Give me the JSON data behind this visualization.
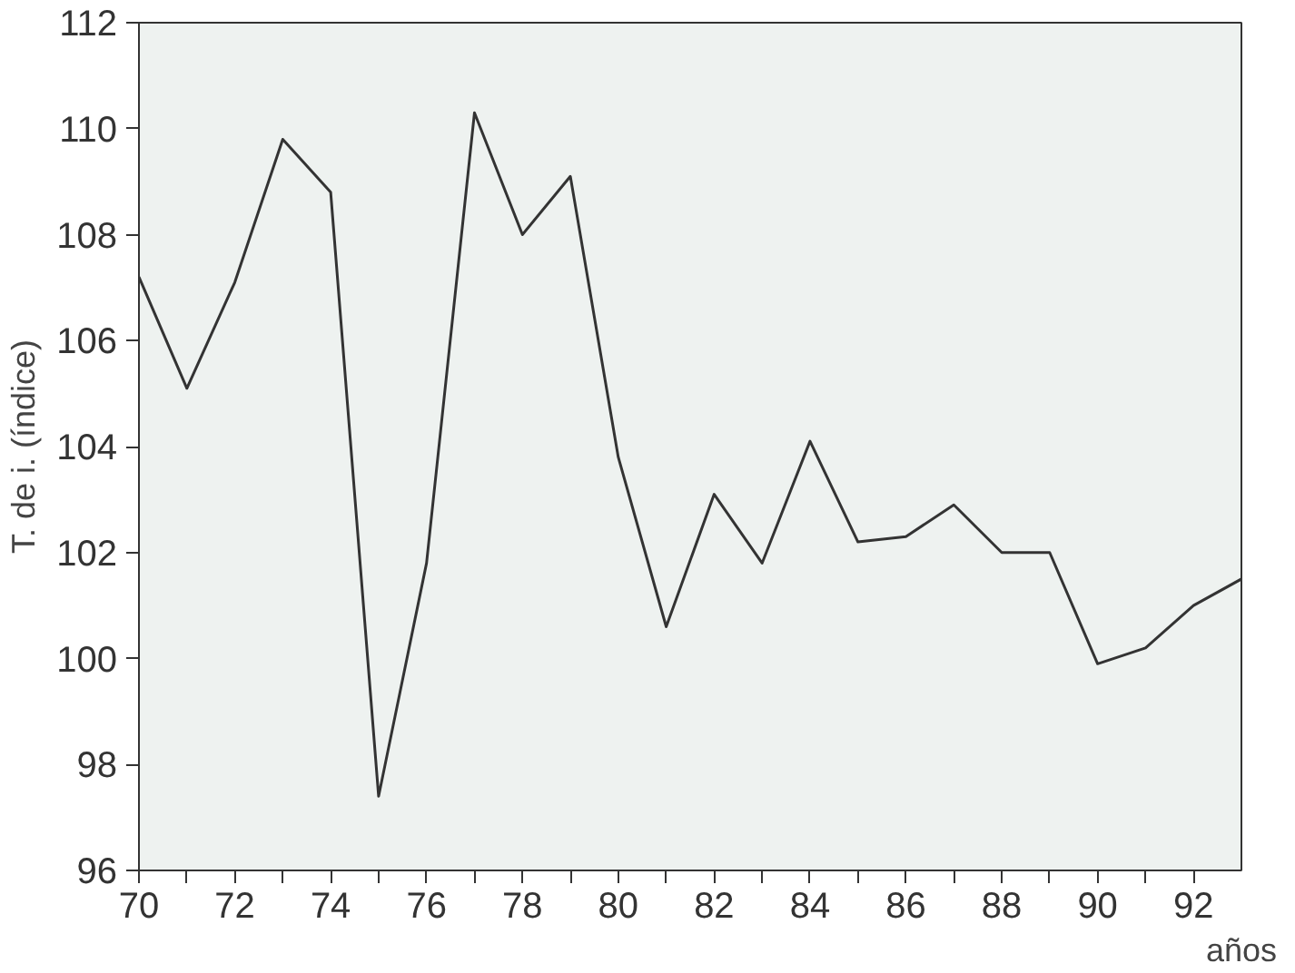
{
  "chart_data": {
    "type": "line",
    "xlabel": "años",
    "ylabel": "T. de i. (índice)",
    "x": [
      70,
      71,
      72,
      73,
      74,
      75,
      76,
      77,
      78,
      79,
      80,
      81,
      82,
      83,
      84,
      85,
      86,
      87,
      88,
      89,
      90,
      91,
      92,
      93
    ],
    "series": [
      {
        "color": "#333333",
        "values": [
          107.2,
          105.1,
          107.1,
          109.8,
          108.8,
          97.4,
          101.8,
          110.3,
          108.0,
          109.1,
          103.8,
          100.6,
          103.1,
          101.8,
          104.1,
          102.2,
          102.3,
          102.9,
          102.0,
          102.0,
          99.9,
          100.2,
          101.0,
          101.5
        ]
      }
    ],
    "xlim": [
      70,
      93
    ],
    "ylim": [
      96,
      112
    ],
    "xticks": [
      70,
      {
        "value": 71,
        "label": null
      },
      72,
      {
        "value": 73,
        "label": null
      },
      74,
      {
        "value": 75,
        "label": null
      },
      76,
      {
        "value": 77,
        "label": null
      },
      78,
      {
        "value": 79,
        "label": null
      },
      80,
      {
        "value": 81,
        "label": null
      },
      82,
      {
        "value": 83,
        "label": null
      },
      84,
      {
        "value": 85,
        "label": null
      },
      86,
      {
        "value": 87,
        "label": null
      },
      88,
      {
        "value": 89,
        "label": null
      },
      90,
      {
        "value": 91,
        "label": null
      },
      92
    ],
    "yticks": [
      96,
      98,
      100,
      102,
      104,
      106,
      108,
      110,
      112
    ],
    "grid": false,
    "marker": "none",
    "line_style": "solid"
  }
}
